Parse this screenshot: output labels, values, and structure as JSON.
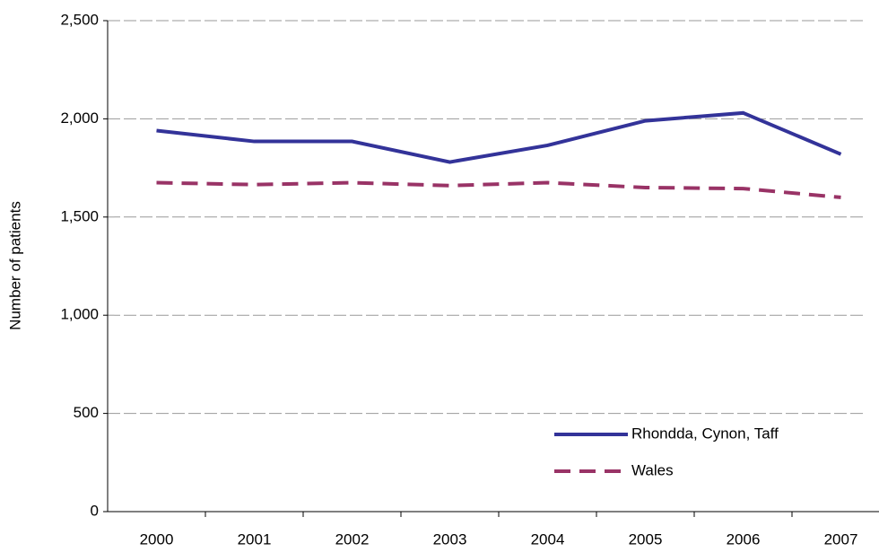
{
  "chart_data": {
    "type": "line",
    "y_label": "Number of patients",
    "categories": [
      "2000",
      "2001",
      "2002",
      "2003",
      "2004",
      "2005",
      "2006",
      "2007"
    ],
    "series": [
      {
        "name": "Rhondda, Cynon, Taff",
        "color": "#333399",
        "dash": "solid",
        "values": [
          1940,
          1885,
          1885,
          1780,
          1865,
          1990,
          2030,
          1820
        ]
      },
      {
        "name": "Wales",
        "color": "#993366",
        "dash": "dashed",
        "values": [
          1675,
          1665,
          1675,
          1660,
          1675,
          1650,
          1645,
          1600
        ]
      }
    ],
    "ylim": [
      0,
      2500
    ],
    "yticks": [
      0,
      500,
      {
        "value": 1000,
        "label": "1,000"
      },
      {
        "value": 1500,
        "label": "1,500"
      },
      {
        "value": 2000,
        "label": "2,000"
      },
      {
        "value": 2500,
        "label": "2,500"
      }
    ],
    "grid": true,
    "legend": "lower right"
  }
}
